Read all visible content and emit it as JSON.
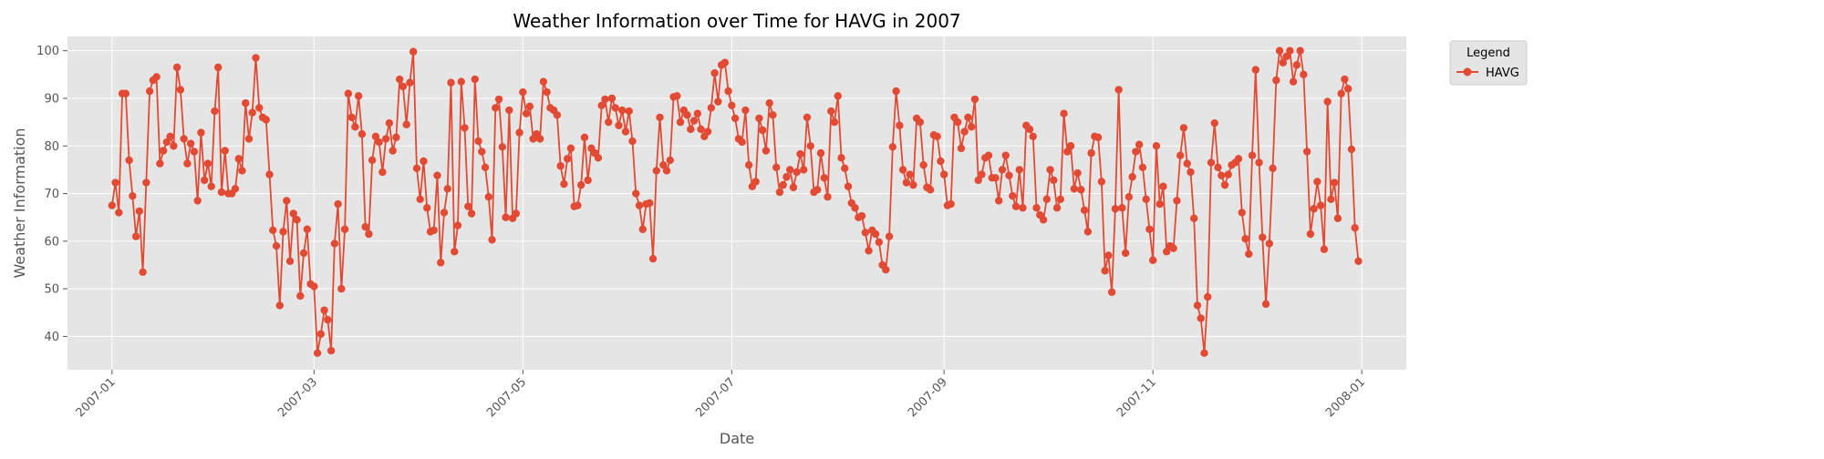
{
  "chart_data": {
    "type": "line",
    "title": "Weather Information over Time for HAVG in 2007",
    "xlabel": "Date",
    "ylabel": "Weather Information",
    "xlim": [
      "2006-12-19",
      "2008-01-14"
    ],
    "ylim": [
      33,
      103
    ],
    "yticks": [
      40,
      50,
      60,
      70,
      80,
      90,
      100
    ],
    "xticks": [
      "2007-01",
      "2007-03",
      "2007-05",
      "2007-07",
      "2007-09",
      "2007-11",
      "2008-01"
    ],
    "grid": true,
    "legend": {
      "title": "Legend",
      "placement": "outside-top-right"
    },
    "x_start": "2007-01-01",
    "x_end": "2007-12-31",
    "series": [
      {
        "name": "HAVG",
        "color": "#E24A33",
        "marker": "circle",
        "values": [
          67.5,
          72.3,
          66.0,
          91.0,
          91.0,
          77.0,
          69.5,
          61.0,
          66.3,
          53.5,
          72.3,
          91.5,
          93.8,
          94.5,
          76.3,
          79.0,
          80.8,
          82.0,
          80.0,
          96.5,
          91.8,
          81.5,
          76.3,
          80.5,
          78.8,
          68.5,
          82.8,
          72.8,
          76.3,
          71.5,
          87.3,
          96.5,
          70.3,
          79.0,
          70.0,
          70.0,
          71.0,
          77.3,
          74.8,
          89.0,
          81.5,
          87.0,
          98.5,
          88.0,
          86.0,
          85.5,
          74.0,
          62.3,
          59.0,
          46.5,
          62.0,
          68.5,
          55.8,
          65.8,
          64.5,
          48.5,
          57.5,
          62.5,
          51.0,
          50.5,
          36.5,
          40.5,
          45.5,
          43.5,
          37.0,
          59.5,
          67.8,
          50.0,
          62.5,
          91.0,
          86.0,
          84.0,
          90.5,
          82.5,
          63.0,
          61.5,
          77.0,
          82.0,
          80.8,
          74.5,
          81.5,
          84.8,
          79.0,
          81.8,
          94.0,
          92.5,
          84.5,
          93.3,
          99.8,
          75.3,
          68.8,
          76.8,
          67.0,
          62.0,
          62.3,
          73.8,
          55.5,
          66.0,
          71.0,
          93.3,
          57.8,
          63.3,
          93.5,
          83.8,
          67.3,
          65.8,
          94.0,
          81.0,
          78.8,
          75.5,
          69.3,
          60.3,
          88.0,
          89.8,
          79.8,
          65.0,
          87.5,
          64.8,
          65.8,
          82.8,
          91.3,
          86.8,
          88.3,
          81.5,
          82.5,
          81.5,
          93.5,
          91.3,
          88.0,
          87.5,
          86.5,
          75.8,
          72.0,
          77.3,
          79.5,
          67.3,
          67.5,
          71.8,
          81.8,
          72.8,
          79.5,
          78.5,
          77.5,
          88.5,
          89.8,
          85.0,
          90.0,
          88.0,
          84.3,
          87.5,
          83.0,
          87.3,
          81.0,
          70.0,
          67.5,
          62.5,
          67.8,
          68.0,
          56.3,
          74.8,
          86.0,
          76.0,
          74.8,
          77.0,
          90.3,
          90.5,
          85.0,
          87.5,
          86.5,
          83.5,
          85.3,
          86.8,
          83.5,
          82.0,
          83.0,
          88.0,
          95.3,
          89.3,
          97.0,
          97.5,
          91.5,
          88.5,
          85.8,
          81.5,
          80.8,
          87.5,
          76.0,
          71.5,
          72.5,
          85.8,
          83.3,
          79.0,
          89.0,
          86.5,
          75.5,
          70.3,
          71.8,
          73.5,
          75.0,
          71.3,
          74.5,
          78.3,
          75.0,
          86.0,
          80.0,
          70.3,
          70.8,
          78.5,
          73.3,
          69.3,
          87.3,
          85.0,
          90.5,
          77.5,
          75.3,
          71.5,
          68.0,
          67.0,
          65.0,
          65.3,
          61.8,
          58.0,
          62.3,
          61.5,
          59.8,
          55.0,
          54.0,
          61.0,
          79.8,
          91.5,
          84.3,
          75.0,
          72.3,
          74.0,
          71.8,
          85.8,
          85.0,
          76.0,
          71.3,
          70.8,
          82.3,
          82.0,
          76.8,
          74.0,
          67.5,
          67.8,
          86.0,
          85.0,
          79.5,
          83.0,
          86.0,
          84.0,
          89.8,
          72.8,
          74.0,
          77.5,
          78.0,
          73.3,
          73.3,
          68.5,
          75.0,
          78.0,
          73.8,
          69.5,
          67.3,
          75.0,
          67.0,
          84.3,
          83.5,
          82.0,
          67.0,
          65.5,
          64.5,
          68.8,
          75.0,
          72.8,
          67.0,
          68.8,
          86.8,
          78.8,
          80.0,
          71.0,
          74.3,
          70.8,
          66.5,
          62.0,
          78.5,
          82.0,
          81.8,
          72.5,
          53.8,
          57.0,
          49.3,
          66.8,
          91.8,
          67.0,
          57.5,
          69.3,
          73.5,
          78.8,
          80.3,
          75.5,
          68.8,
          62.5,
          56.0,
          80.0,
          67.8,
          71.5,
          57.8,
          59.0,
          58.5,
          68.5,
          78.0,
          83.8,
          76.3,
          74.5,
          64.8,
          46.5,
          43.8,
          36.5,
          48.3,
          76.5,
          84.8,
          75.5,
          73.8,
          71.8,
          74.0,
          76.0,
          76.5,
          77.3,
          66.0,
          60.5,
          57.3,
          78.0,
          96.0,
          76.5,
          60.8,
          46.8,
          59.5,
          75.3,
          93.8,
          100.0,
          97.5,
          98.8,
          100.0,
          93.5,
          97.0,
          100.0,
          95.0,
          78.8,
          61.5,
          66.8,
          72.5,
          67.5,
          58.3,
          89.3,
          68.8,
          72.3,
          64.8,
          91.0,
          94.0,
          92.0,
          79.3,
          62.8,
          55.8
        ]
      }
    ]
  }
}
